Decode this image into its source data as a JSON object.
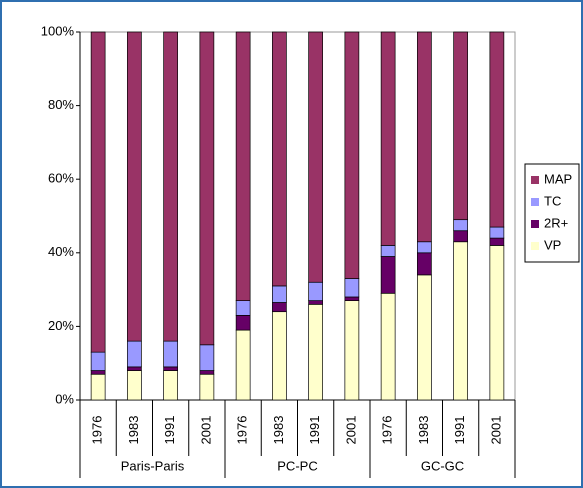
{
  "chart_data": {
    "type": "stacked_bar",
    "categories": [
      "1976",
      "1983",
      "1991",
      "2001",
      "1976",
      "1983",
      "1991",
      "2001",
      "1976",
      "1983",
      "1991",
      "2001"
    ],
    "groups": [
      "Paris-Paris",
      "PC-PC",
      "GC-GC"
    ],
    "series": [
      {
        "name": "VP",
        "color": "#ffffcc",
        "values": [
          7,
          8,
          8,
          7,
          19,
          24,
          26,
          27,
          29,
          34,
          43,
          42
        ]
      },
      {
        "name": "2R+",
        "color": "#660066",
        "values": [
          1,
          1,
          1,
          1,
          4,
          2.5,
          1,
          1,
          10,
          6,
          3,
          2
        ]
      },
      {
        "name": "TC",
        "color": "#9999ff",
        "values": [
          5,
          7,
          7,
          7,
          4,
          4.5,
          5,
          5,
          3,
          3,
          3,
          3
        ]
      },
      {
        "name": "MAP",
        "color": "#993366",
        "values": [
          87,
          84,
          84,
          85,
          73,
          69,
          68,
          67,
          58,
          57,
          51,
          53
        ]
      }
    ],
    "ylim": [
      0,
      100
    ],
    "yticks": [
      {
        "value": 0,
        "label": "0%"
      },
      {
        "value": 20,
        "label": "20%"
      },
      {
        "value": 40,
        "label": "40%"
      },
      {
        "value": 60,
        "label": "60%"
      },
      {
        "value": 80,
        "label": "80%"
      },
      {
        "value": 100,
        "label": "100%"
      }
    ]
  }
}
